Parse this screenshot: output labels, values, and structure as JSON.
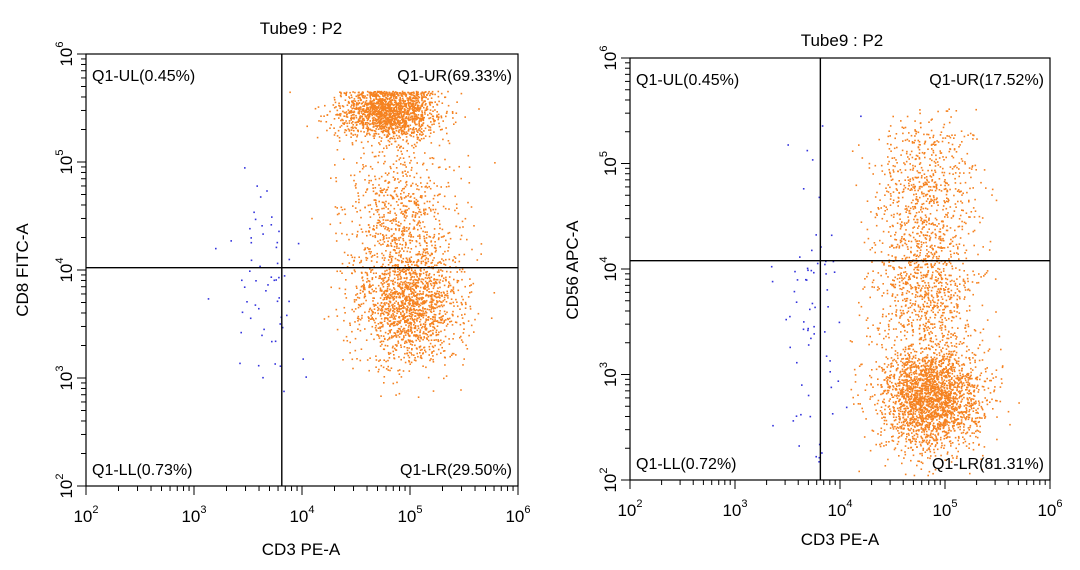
{
  "chart_data": [
    {
      "type": "scatter",
      "title": "Tube9 : P2",
      "xlabel": "CD3 PE-A",
      "ylabel": "CD8 FITC-A",
      "x_scale": "log",
      "y_scale": "log",
      "xlim": [
        100,
        1000000
      ],
      "ylim": [
        100,
        1000000
      ],
      "tick_labels": [
        {
          "base": "10",
          "exp": "2",
          "value": 100
        },
        {
          "base": "10",
          "exp": "3",
          "value": 1000
        },
        {
          "base": "10",
          "exp": "4",
          "value": 10000
        },
        {
          "base": "10",
          "exp": "5",
          "value": 100000
        },
        {
          "base": "10",
          "exp": "6",
          "value": 1000000
        }
      ],
      "gate": {
        "x": 6500,
        "y": 10500
      },
      "quadrants": [
        {
          "id": "UL",
          "text": "Q1-UL(0.45%)"
        },
        {
          "id": "UR",
          "text": "Q1-UR(69.33%)"
        },
        {
          "id": "LL",
          "text": "Q1-LL(0.73%)"
        },
        {
          "id": "LR",
          "text": "Q1-LR(29.50%)"
        }
      ],
      "series": [
        {
          "name": "events",
          "color": "#f58220"
        },
        {
          "name": "negative events",
          "color": "#3333dd"
        }
      ],
      "clusters": [
        {
          "color": "#f58220",
          "count": 1700,
          "cx": 65000,
          "cy": 290000,
          "sx": 0.22,
          "sy": 0.13,
          "clip_y": 450000
        },
        {
          "color": "#f58220",
          "count": 1500,
          "cx": 100000,
          "cy": 4500,
          "sx": 0.24,
          "sy": 0.27
        },
        {
          "color": "#f58220",
          "count": 800,
          "cx": 80000,
          "cy": 28000,
          "sx": 0.26,
          "sy": 0.38
        },
        {
          "color": "#3333dd",
          "count": 60,
          "cx": 4500,
          "cy": 10000,
          "sx": 0.18,
          "sy": 0.45
        }
      ]
    },
    {
      "type": "scatter",
      "title": "Tube9 : P2",
      "xlabel": "CD3 PE-A",
      "ylabel": "CD56 APC-A",
      "x_scale": "log",
      "y_scale": "log",
      "xlim": [
        100,
        1000000
      ],
      "ylim": [
        100,
        1000000
      ],
      "tick_labels": [
        {
          "base": "10",
          "exp": "2",
          "value": 100
        },
        {
          "base": "10",
          "exp": "3",
          "value": 1000
        },
        {
          "base": "10",
          "exp": "4",
          "value": 10000
        },
        {
          "base": "10",
          "exp": "5",
          "value": 100000
        },
        {
          "base": "10",
          "exp": "6",
          "value": 1000000
        }
      ],
      "gate": {
        "x": 6500,
        "y": 12000
      },
      "quadrants": [
        {
          "id": "UL",
          "text": "Q1-UL(0.45%)"
        },
        {
          "id": "UR",
          "text": "Q1-UR(17.52%)"
        },
        {
          "id": "LL",
          "text": "Q1-LL(0.72%)"
        },
        {
          "id": "LR",
          "text": "Q1-LR(81.31%)"
        }
      ],
      "series": [
        {
          "name": "events",
          "color": "#f58220"
        },
        {
          "name": "negative events",
          "color": "#3333dd"
        }
      ],
      "clusters": [
        {
          "color": "#f58220",
          "count": 2400,
          "cx": 75000,
          "cy": 600,
          "sx": 0.24,
          "sy": 0.25,
          "clip_y": 110
        },
        {
          "color": "#f58220",
          "count": 900,
          "cx": 65000,
          "cy": 7000,
          "sx": 0.24,
          "sy": 0.38
        },
        {
          "color": "#f58220",
          "count": 600,
          "cx": 65000,
          "cy": 60000,
          "sx": 0.24,
          "sy": 0.35,
          "clip_y": 330000
        },
        {
          "color": "#3333dd",
          "count": 70,
          "cx": 5000,
          "cy": 4000,
          "sx": 0.18,
          "sy": 0.75
        }
      ]
    }
  ]
}
